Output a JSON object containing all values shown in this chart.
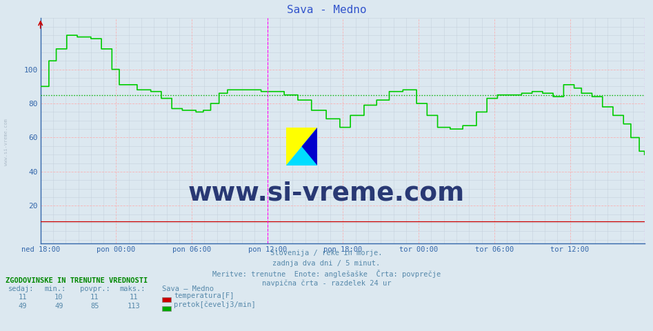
{
  "title": "Sava - Medno",
  "title_color": "#3355cc",
  "bg_color": "#dce8f0",
  "plot_bg_color": "#dce8f0",
  "ylim": [
    -2,
    130
  ],
  "yticks": [
    20,
    40,
    60,
    80,
    100
  ],
  "ylabel_color": "#3366aa",
  "grid_major_color": "#ffaaaa",
  "grid_minor_color": "#c0ccd8",
  "avg_line_value": 85,
  "avg_line_color": "#00bb00",
  "temp_line_color": "#cc0000",
  "flow_line_color": "#00cc00",
  "vline_color": "#ff00ff",
  "n_points": 576,
  "xtick_labels": [
    "ned 18:00",
    "pon 00:00",
    "pon 06:00",
    "pon 12:00",
    "pon 18:00",
    "tor 00:00",
    "tor 06:00",
    "tor 12:00"
  ],
  "xtick_positions": [
    0,
    72,
    144,
    216,
    288,
    360,
    432,
    504
  ],
  "vline_positions": [
    216,
    575
  ],
  "subtitle_lines": [
    "Slovenija / reke in morje.",
    "zadnja dva dni / 5 minut.",
    "Meritve: trenutne  Enote: anglešaške  Črta: povprečje",
    "navpična črta - razdelek 24 ur"
  ],
  "subtitle_color": "#5588aa",
  "table_header": "ZGODOVINSKE IN TRENUTNE VREDNOSTI",
  "col_headers": [
    "sedaj:",
    "min.:",
    "povpr.:",
    "maks.:"
  ],
  "temp_label": "temperatura[F]",
  "flow_label": "pretok[čevelj3/min]",
  "legend_title": "Sava – Medno",
  "temp_values": [
    "11",
    "10",
    "11",
    "11"
  ],
  "flow_values": [
    "49",
    "49",
    "85",
    "113"
  ],
  "watermark_text": "www.si-vreme.com",
  "watermark_color": "#1a2a6a",
  "left_text": "www.si-vreme.com",
  "left_text_color": "#8899aa",
  "spine_color": "#3366aa",
  "arrow_color": "#cc0000"
}
